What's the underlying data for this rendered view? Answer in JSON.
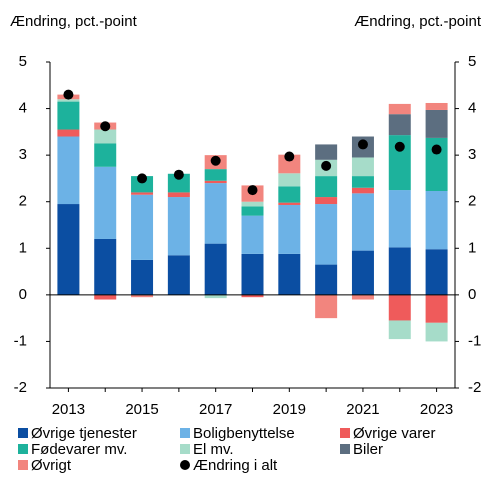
{
  "chart_data": {
    "type": "stacked_bar",
    "ylabel": "Ændring, pct.-point",
    "y2label": "Ændring, pct.-point",
    "categories": [
      "2013",
      null,
      "2015",
      null,
      "2017",
      null,
      "2019",
      null,
      "2021",
      null,
      "2023"
    ],
    "ylim": [
      -2,
      5
    ],
    "yticks": [
      -2,
      -1,
      0,
      1,
      2,
      3,
      4,
      5
    ],
    "y2lim": [
      -2,
      5
    ],
    "y2ticks": [
      -2,
      -1,
      0,
      1,
      2,
      3,
      4,
      5
    ],
    "grid": false,
    "series": [
      {
        "name": "Øvrige tjenester",
        "color": "#0b4ea2",
        "values": [
          1.95,
          1.2,
          0.75,
          0.85,
          1.1,
          0.88,
          0.88,
          0.65,
          0.95,
          1.02,
          0.98
        ]
      },
      {
        "name": "Boligbenyttelse",
        "color": "#6cb2e6",
        "values": [
          1.45,
          1.55,
          1.4,
          1.25,
          1.3,
          0.82,
          1.05,
          1.3,
          1.23,
          1.23,
          1.25
        ]
      },
      {
        "name": "Øvrige varer",
        "color": "#ef5b5b",
        "values": [
          0.15,
          -0.1,
          0.05,
          0.1,
          0.05,
          -0.05,
          0.05,
          0.15,
          0.12,
          -0.55,
          -0.6
        ]
      },
      {
        "name": "Fødevarer mv.",
        "color": "#1db29c",
        "values": [
          0.6,
          0.5,
          0.35,
          0.4,
          0.25,
          0.2,
          0.35,
          0.45,
          0.25,
          1.18,
          1.14
        ]
      },
      {
        "name": "El mv.",
        "color": "#a6dcc9",
        "values": [
          0.05,
          0.3,
          0,
          0,
          -0.07,
          0.1,
          0.28,
          0.35,
          0.4,
          -0.4,
          -0.4
        ]
      },
      {
        "name": "Biler",
        "color": "#5c6e80",
        "values": [
          0,
          0,
          0,
          0,
          0,
          0,
          0,
          0.33,
          0.45,
          0.45,
          0.6
        ]
      },
      {
        "name": "Øvrigt",
        "color": "#f2857e",
        "values": [
          0.1,
          0.15,
          -0.05,
          0,
          0.3,
          0.35,
          0.4,
          -0.5,
          -0.1,
          0.22,
          0.15
        ]
      },
      {
        "name": "Ændring i alt",
        "color": "#000000",
        "kind": "dot",
        "values": [
          4.3,
          3.62,
          2.5,
          2.58,
          2.88,
          2.25,
          2.97,
          2.77,
          3.23,
          3.18,
          3.12
        ]
      }
    ]
  }
}
